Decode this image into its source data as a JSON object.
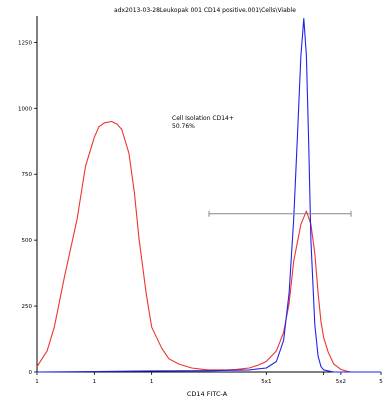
{
  "chart_data": {
    "type": "line",
    "title": "adx2013-03-28Leukopak 001 CD14 positive.001\\Cells\\Viable",
    "xlabel": "CD14 FITC-A",
    "ylabel": "",
    "x_scale": "log",
    "xlim": [
      1,
      1000000
    ],
    "ylim": [
      0,
      1350
    ],
    "x_ticks": [
      {
        "value": 1,
        "label": "1"
      },
      {
        "value": 10,
        "label": "1"
      },
      {
        "value": 100,
        "label": "1"
      },
      {
        "value": 10000,
        "label": "5x1"
      },
      {
        "value": 100000,
        "label": ""
      },
      {
        "value": 200000,
        "label": "5x2"
      },
      {
        "value": 1000000,
        "label": "5"
      }
    ],
    "y_ticks": [
      0,
      250,
      500,
      750,
      1000,
      1250
    ],
    "grid": false,
    "annotation": {
      "line1": "Cell Isolation CD14+",
      "line2": "50.76%",
      "gate_x_range": [
        1000,
        300000
      ],
      "gate_y": 600
    },
    "colors": {
      "red_series": "#ee3333",
      "blue_series": "#2222ee",
      "gate": "#888888",
      "axis": "#000000"
    },
    "series": [
      {
        "color": "red",
        "x": [
          1,
          1.5,
          2,
          3,
          5,
          7,
          10,
          12,
          15,
          20,
          25,
          30,
          40,
          50,
          60,
          80,
          100,
          150,
          200,
          300,
          500,
          800,
          1000,
          2000,
          3000,
          5000,
          7000,
          10000,
          15000,
          20000,
          25000,
          30000,
          40000,
          50000,
          60000,
          70000,
          80000,
          90000,
          100000,
          120000,
          150000,
          200000,
          250000,
          300000
        ],
        "y": [
          20,
          80,
          170,
          360,
          580,
          780,
          890,
          930,
          945,
          950,
          940,
          920,
          830,
          680,
          510,
          300,
          170,
          90,
          50,
          30,
          15,
          10,
          8,
          8,
          10,
          15,
          25,
          40,
          80,
          150,
          260,
          420,
          560,
          610,
          560,
          450,
          300,
          190,
          130,
          75,
          30,
          10,
          3,
          0
        ]
      },
      {
        "color": "blue",
        "x": [
          1,
          10,
          100,
          1000,
          5000,
          10000,
          15000,
          20000,
          25000,
          30000,
          35000,
          40000,
          45000,
          50000,
          55000,
          60000,
          70000,
          80000,
          90000,
          100000,
          150000,
          1000000
        ],
        "y": [
          0,
          2,
          4,
          5,
          8,
          15,
          40,
          120,
          300,
          580,
          900,
          1200,
          1340,
          1200,
          850,
          500,
          180,
          60,
          20,
          8,
          0,
          0
        ]
      }
    ]
  }
}
